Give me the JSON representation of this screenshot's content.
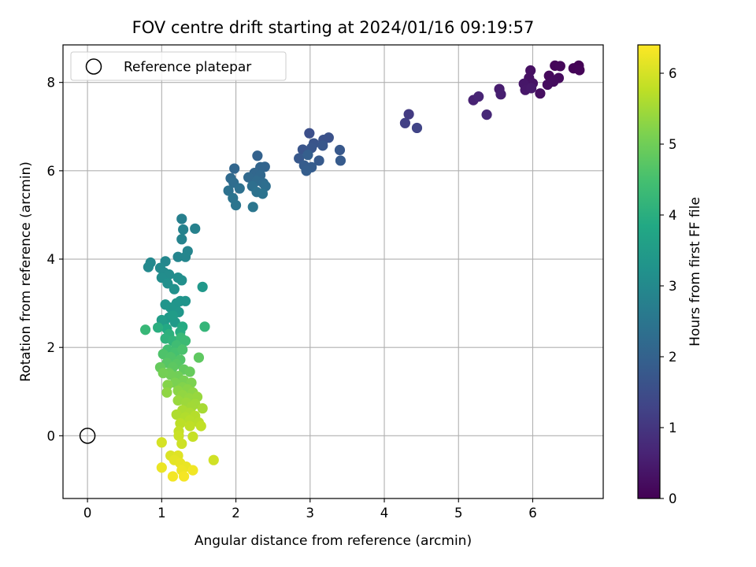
{
  "chart_data": {
    "type": "scatter",
    "title": "FOV centre drift starting at 2024/01/16 09:19:57",
    "xlabel": "Angular distance from reference (arcmin)",
    "ylabel": "Rotation from reference (arcmin)",
    "xlim": [
      -0.33,
      6.95
    ],
    "ylim": [
      -1.42,
      8.85
    ],
    "xticks": [
      0,
      1,
      2,
      3,
      4,
      5,
      6
    ],
    "yticks": [
      0,
      2,
      4,
      6,
      8
    ],
    "grid": true,
    "legend": {
      "placement": "top-left",
      "entries": [
        {
          "label": "Reference platepar",
          "marker": "open-circle"
        }
      ]
    },
    "reference_point": {
      "x": 0,
      "y": 0
    },
    "colorbar": {
      "label": "Hours from first FF file",
      "colormap": "viridis",
      "range": [
        0,
        6.4
      ],
      "ticks": [
        0,
        1,
        2,
        3,
        4,
        5,
        6
      ]
    },
    "series": [
      {
        "color_by": "Hours from first FF file",
        "points": [
          [
            6.62,
            8.38,
            0.02
          ],
          [
            6.55,
            8.32,
            0.05
          ],
          [
            6.63,
            8.28,
            0.08
          ],
          [
            6.3,
            8.38,
            0.1
          ],
          [
            6.37,
            8.37,
            0.12
          ],
          [
            6.22,
            8.15,
            0.15
          ],
          [
            6.35,
            8.1,
            0.18
          ],
          [
            6.28,
            8.02,
            0.2
          ],
          [
            6.2,
            7.95,
            0.22
          ],
          [
            6.1,
            7.75,
            0.25
          ],
          [
            5.97,
            8.27,
            0.28
          ],
          [
            5.95,
            8.1,
            0.3
          ],
          [
            6.0,
            7.98,
            0.33
          ],
          [
            5.92,
            7.9,
            0.35
          ],
          [
            5.88,
            7.97,
            0.38
          ],
          [
            5.9,
            7.83,
            0.4
          ],
          [
            5.98,
            7.87,
            0.43
          ],
          [
            5.55,
            7.85,
            0.5
          ],
          [
            5.57,
            7.73,
            0.55
          ],
          [
            5.2,
            7.6,
            0.6
          ],
          [
            5.27,
            7.68,
            0.65
          ],
          [
            5.38,
            7.27,
            0.72
          ],
          [
            4.33,
            7.28,
            1.1
          ],
          [
            4.28,
            7.08,
            1.2
          ],
          [
            4.44,
            6.97,
            1.3
          ],
          [
            2.99,
            6.85,
            1.55
          ],
          [
            3.25,
            6.75,
            1.6
          ],
          [
            3.18,
            6.7,
            1.62
          ],
          [
            3.05,
            6.62,
            1.65
          ],
          [
            2.9,
            6.48,
            1.68
          ],
          [
            3.02,
            6.52,
            1.7
          ],
          [
            3.17,
            6.57,
            1.72
          ],
          [
            3.4,
            6.47,
            1.75
          ],
          [
            2.85,
            6.28,
            1.78
          ],
          [
            3.12,
            6.23,
            1.8
          ],
          [
            3.41,
            6.23,
            1.82
          ],
          [
            2.92,
            6.12,
            1.85
          ],
          [
            3.02,
            6.08,
            1.88
          ],
          [
            2.95,
            6.0,
            1.9
          ],
          [
            2.97,
            6.36,
            1.92
          ],
          [
            2.29,
            6.34,
            2.0
          ],
          [
            2.39,
            6.09,
            2.05
          ],
          [
            2.33,
            6.08,
            2.08
          ],
          [
            1.98,
            6.05,
            2.1
          ],
          [
            2.25,
            5.95,
            2.12
          ],
          [
            2.33,
            5.9,
            2.15
          ],
          [
            2.17,
            5.85,
            2.18
          ],
          [
            1.93,
            5.83,
            2.2
          ],
          [
            2.28,
            5.77,
            2.22
          ],
          [
            2.37,
            5.72,
            2.25
          ],
          [
            1.97,
            5.73,
            2.28
          ],
          [
            2.4,
            5.65,
            2.3
          ],
          [
            2.22,
            5.65,
            2.32
          ],
          [
            2.05,
            5.6,
            2.35
          ],
          [
            1.9,
            5.55,
            2.38
          ],
          [
            2.28,
            5.52,
            2.4
          ],
          [
            2.36,
            5.48,
            2.42
          ],
          [
            1.96,
            5.38,
            2.45
          ],
          [
            2.0,
            5.22,
            2.48
          ],
          [
            2.23,
            5.18,
            2.5
          ],
          [
            1.27,
            4.91,
            2.75
          ],
          [
            1.45,
            4.69,
            2.8
          ],
          [
            1.29,
            4.67,
            2.82
          ],
          [
            1.27,
            4.45,
            2.85
          ],
          [
            1.35,
            4.18,
            2.88
          ],
          [
            1.22,
            4.05,
            2.9
          ],
          [
            1.32,
            4.05,
            2.92
          ],
          [
            1.05,
            3.95,
            2.95
          ],
          [
            0.85,
            3.92,
            2.98
          ],
          [
            0.82,
            3.82,
            3.0
          ],
          [
            0.98,
            3.8,
            3.02
          ],
          [
            1.03,
            3.7,
            3.05
          ],
          [
            1.1,
            3.65,
            3.08
          ],
          [
            1.0,
            3.58,
            3.1
          ],
          [
            1.22,
            3.58,
            3.12
          ],
          [
            1.27,
            3.52,
            3.15
          ],
          [
            1.08,
            3.45,
            3.18
          ],
          [
            1.17,
            3.32,
            3.2
          ],
          [
            1.55,
            3.37,
            3.4
          ],
          [
            1.25,
            3.05,
            3.25
          ],
          [
            1.32,
            3.05,
            3.28
          ],
          [
            1.05,
            2.97,
            3.3
          ],
          [
            1.2,
            3.0,
            3.32
          ],
          [
            1.12,
            2.9,
            3.35
          ],
          [
            1.23,
            2.8,
            3.38
          ],
          [
            1.1,
            2.68,
            3.42
          ],
          [
            1.18,
            2.57,
            3.45
          ],
          [
            1.03,
            2.55,
            3.48
          ],
          [
            1.15,
            2.72,
            3.5
          ],
          [
            1.0,
            2.62,
            3.52
          ],
          [
            0.78,
            2.4,
            4.25
          ],
          [
            1.58,
            2.47,
            4.2
          ],
          [
            0.95,
            2.45,
            4.0
          ],
          [
            1.07,
            2.42,
            3.85
          ],
          [
            1.28,
            2.47,
            3.9
          ],
          [
            1.25,
            2.35,
            3.95
          ],
          [
            1.1,
            2.3,
            4.05
          ],
          [
            1.05,
            2.2,
            4.1
          ],
          [
            1.15,
            2.15,
            4.15
          ],
          [
            1.26,
            2.22,
            4.3
          ],
          [
            1.32,
            2.15,
            4.35
          ],
          [
            1.2,
            2.05,
            4.4
          ],
          [
            1.08,
            1.95,
            4.45
          ],
          [
            1.18,
            1.88,
            4.5
          ],
          [
            1.28,
            1.95,
            4.55
          ],
          [
            1.02,
            1.85,
            4.6
          ],
          [
            1.12,
            1.78,
            4.62
          ],
          [
            1.25,
            1.72,
            4.65
          ],
          [
            1.07,
            1.65,
            4.7
          ],
          [
            1.2,
            1.62,
            4.72
          ],
          [
            1.5,
            1.77,
            4.8
          ],
          [
            1.15,
            1.55,
            4.78
          ],
          [
            1.3,
            1.5,
            4.85
          ],
          [
            0.98,
            1.55,
            4.88
          ],
          [
            1.38,
            1.45,
            4.9
          ],
          [
            1.1,
            1.42,
            4.95
          ],
          [
            1.22,
            1.35,
            5.0
          ],
          [
            1.12,
            1.38,
            5.02
          ],
          [
            1.02,
            1.42,
            5.05
          ],
          [
            1.3,
            1.25,
            5.1
          ],
          [
            1.18,
            1.2,
            5.12
          ],
          [
            1.4,
            1.2,
            5.15
          ],
          [
            1.28,
            1.1,
            5.2
          ],
          [
            1.08,
            1.15,
            5.22
          ],
          [
            1.35,
            1.05,
            5.25
          ],
          [
            1.22,
            1.02,
            5.28
          ],
          [
            1.42,
            0.98,
            5.3
          ],
          [
            1.07,
            0.98,
            5.32
          ],
          [
            1.28,
            0.92,
            5.35
          ],
          [
            1.37,
            0.85,
            5.38
          ],
          [
            1.48,
            0.88,
            5.4
          ],
          [
            1.22,
            0.8,
            5.42
          ],
          [
            1.33,
            0.75,
            5.45
          ],
          [
            1.45,
            0.72,
            5.48
          ],
          [
            1.4,
            0.65,
            5.5
          ],
          [
            1.55,
            0.62,
            5.55
          ],
          [
            1.28,
            0.58,
            5.58
          ],
          [
            1.38,
            0.52,
            5.6
          ],
          [
            1.2,
            0.48,
            5.62
          ],
          [
            1.32,
            0.42,
            5.65
          ],
          [
            1.45,
            0.45,
            5.68
          ],
          [
            1.38,
            0.35,
            5.7
          ],
          [
            1.5,
            0.3,
            5.72
          ],
          [
            1.25,
            0.28,
            5.75
          ],
          [
            1.38,
            0.22,
            5.78
          ],
          [
            1.53,
            0.22,
            5.8
          ],
          [
            1.23,
            0.1,
            5.82
          ],
          [
            1.42,
            -0.02,
            5.85
          ],
          [
            1.23,
            0.0,
            5.88
          ],
          [
            1.27,
            -0.18,
            5.92
          ],
          [
            1.0,
            -0.15,
            6.0
          ],
          [
            1.7,
            -0.55,
            5.95
          ],
          [
            1.12,
            -0.45,
            6.05
          ],
          [
            1.22,
            -0.45,
            6.1
          ],
          [
            1.17,
            -0.55,
            6.15
          ],
          [
            1.25,
            -0.62,
            6.18
          ],
          [
            1.33,
            -0.7,
            6.2
          ],
          [
            1.0,
            -0.72,
            6.22
          ],
          [
            1.27,
            -0.78,
            6.25
          ],
          [
            1.42,
            -0.78,
            6.28
          ],
          [
            1.15,
            -0.92,
            6.3
          ],
          [
            1.3,
            -0.92,
            6.32
          ]
        ]
      }
    ]
  }
}
